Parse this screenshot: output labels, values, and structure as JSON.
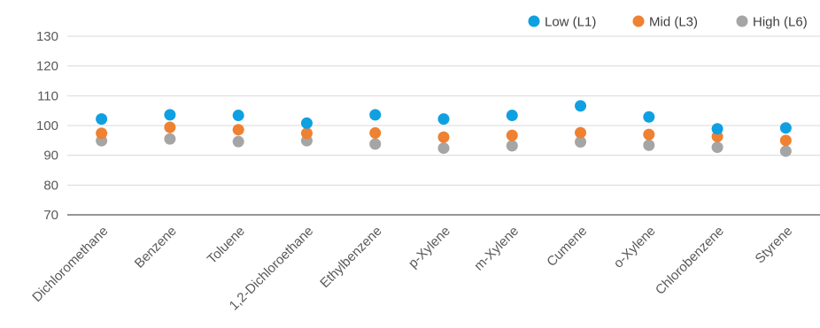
{
  "chart_data": {
    "type": "scatter",
    "title": "",
    "xlabel": "",
    "ylabel": "",
    "ylim": [
      70,
      130
    ],
    "yticks": [
      70,
      80,
      90,
      100,
      110,
      120,
      130
    ],
    "grid": true,
    "legend": "top-right",
    "categories": [
      "Dichloromethane",
      "Benzene",
      "Toluene",
      "1,2-Dichloroethane",
      "Ethylbenzene",
      "p-Xylene",
      "m-Xylene",
      "Cumene",
      "o-Xylene",
      "Chlorobenzene",
      "Styrene"
    ],
    "series": [
      {
        "name": "Low (L1)",
        "color": "#0fa0e2",
        "values": [
          102.2,
          103.6,
          103.4,
          100.8,
          103.6,
          102.2,
          103.4,
          106.6,
          102.9,
          98.9,
          99.2
        ]
      },
      {
        "name": "Mid (L3)",
        "color": "#ef8132",
        "values": [
          97.4,
          99.4,
          98.6,
          97.4,
          97.5,
          96.1,
          96.7,
          97.6,
          97.0,
          96.3,
          95.0
        ]
      },
      {
        "name": "High (L6)",
        "color": "#a5a5a5",
        "values": [
          94.9,
          95.5,
          94.6,
          94.9,
          93.8,
          92.4,
          93.2,
          94.5,
          93.4,
          92.7,
          91.4
        ]
      }
    ]
  }
}
